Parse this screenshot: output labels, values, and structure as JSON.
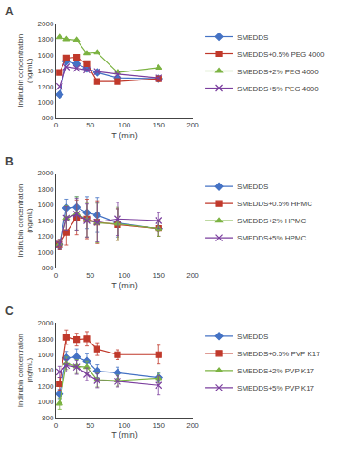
{
  "chart_data": [
    {
      "type": "line",
      "title": "A",
      "xlabel": "T (min)",
      "ylabel": "Indirubin concentration\n(ng/mL)",
      "x": [
        5,
        15,
        30,
        45,
        60,
        90,
        150
      ],
      "xlim": [
        0,
        200
      ],
      "xticks": [
        0,
        50,
        100,
        150,
        200
      ],
      "ylim": [
        800,
        2000
      ],
      "yticks": [
        800,
        1000,
        1200,
        1400,
        1600,
        1800,
        2000
      ],
      "grid": false,
      "legend": "right",
      "series": [
        {
          "name": "SMEDDS",
          "color": "#4472C4",
          "marker": "diamond",
          "values": [
            1100,
            1520,
            1490,
            1430,
            1380,
            1310,
            1300
          ]
        },
        {
          "name": "SMEDDS+0.5% PEG 4000",
          "color": "#C0392B",
          "marker": "square",
          "values": [
            1380,
            1560,
            1570,
            1490,
            1265,
            1265,
            1300
          ]
        },
        {
          "name": "SMEDDS+2% PEG 4000",
          "color": "#7CB342",
          "marker": "triangle-up",
          "values": [
            1825,
            1800,
            1790,
            1620,
            1630,
            1380,
            1440
          ]
        },
        {
          "name": "SMEDDS+5% PEG 4000",
          "color": "#7B3F9E",
          "marker": "x",
          "values": [
            1200,
            1450,
            1430,
            1410,
            1390,
            1360,
            1310
          ]
        }
      ]
    },
    {
      "type": "line",
      "title": "B",
      "xlabel": "T (min)",
      "ylabel": "Indirubin concentration\n(ng/mL)",
      "x": [
        5,
        15,
        30,
        45,
        60,
        90,
        150
      ],
      "xlim": [
        0,
        200
      ],
      "xticks": [
        0,
        50,
        100,
        150,
        200
      ],
      "ylim": [
        800,
        2000
      ],
      "yticks": [
        800,
        1000,
        1200,
        1400,
        1600,
        1800,
        2000
      ],
      "grid": false,
      "legend": "right",
      "series": [
        {
          "name": "SMEDDS",
          "color": "#4472C4",
          "marker": "diamond",
          "values": [
            1100,
            1560,
            1570,
            1500,
            1470,
            1370,
            1300
          ],
          "yerr": [
            60,
            110,
            130,
            200,
            220,
            180,
            100
          ]
        },
        {
          "name": "SMEDDS+0.5% HPMC",
          "color": "#C0392B",
          "marker": "square",
          "values": [
            1100,
            1250,
            1440,
            1420,
            1380,
            1350,
            1300
          ],
          "yerr": [
            60,
            160,
            220,
            250,
            270,
            200,
            100
          ]
        },
        {
          "name": "SMEDDS+2% HPMC",
          "color": "#7CB342",
          "marker": "triangle-up",
          "values": [
            1100,
            1430,
            1490,
            1410,
            1370,
            1360,
            1300
          ],
          "yerr": [
            50,
            160,
            210,
            220,
            250,
            210,
            100
          ]
        },
        {
          "name": "SMEDDS+5% HPMC",
          "color": "#7B3F9E",
          "marker": "x",
          "values": [
            1100,
            1430,
            1480,
            1400,
            1380,
            1420,
            1400
          ],
          "yerr": [
            50,
            150,
            200,
            210,
            250,
            210,
            100
          ]
        }
      ]
    },
    {
      "type": "line",
      "title": "C",
      "xlabel": "T (min)",
      "ylabel": "Indirubin concentration\n(ng/mL)",
      "x": [
        5,
        15,
        30,
        45,
        60,
        90,
        150
      ],
      "xlim": [
        0,
        200
      ],
      "xticks": [
        0,
        50,
        100,
        150,
        200
      ],
      "ylim": [
        800,
        2000
      ],
      "yticks": [
        800,
        1000,
        1200,
        1400,
        1600,
        1800,
        2000
      ],
      "grid": false,
      "legend": "right",
      "series": [
        {
          "name": "SMEDDS",
          "color": "#4472C4",
          "marker": "diamond",
          "values": [
            1100,
            1560,
            1570,
            1520,
            1390,
            1370,
            1310
          ],
          "yerr": [
            60,
            80,
            100,
            90,
            80,
            70,
            60
          ]
        },
        {
          "name": "SMEDDS+0.5% PVP K17",
          "color": "#C0392B",
          "marker": "square",
          "values": [
            1230,
            1820,
            1790,
            1800,
            1670,
            1600,
            1600
          ],
          "yerr": [
            80,
            90,
            80,
            90,
            80,
            60,
            120
          ]
        },
        {
          "name": "SMEDDS+2% PVP K17",
          "color": "#7CB342",
          "marker": "triangle-up",
          "values": [
            980,
            1490,
            1450,
            1440,
            1280,
            1270,
            1300
          ],
          "yerr": [
            70,
            80,
            90,
            80,
            90,
            70,
            60
          ]
        },
        {
          "name": "SMEDDS+5% PVP K17",
          "color": "#7B3F9E",
          "marker": "x",
          "values": [
            1380,
            1460,
            1440,
            1350,
            1270,
            1260,
            1210
          ],
          "yerr": [
            70,
            80,
            90,
            80,
            90,
            70,
            120
          ]
        }
      ]
    }
  ]
}
